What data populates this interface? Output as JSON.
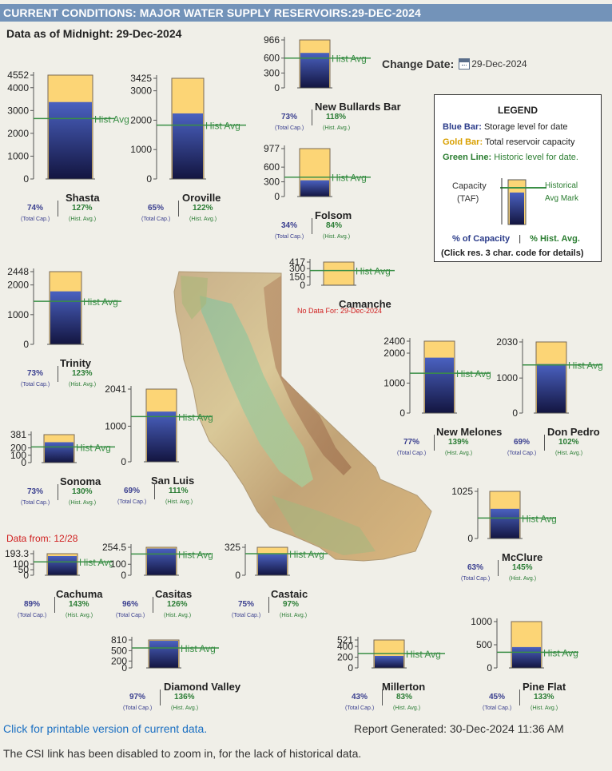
{
  "header": {
    "title": "CURRENT CONDITIONS: MAJOR WATER SUPPLY RESERVOIRS:29-DEC-2024",
    "data_as_of": "Data as of Midnight: 29-Dec-2024",
    "change_date_label": "Change Date:",
    "change_date_value": "29-Dec-2024",
    "calendar_icon": "calendar-icon"
  },
  "legend": {
    "title": "LEGEND",
    "blue_label": "Blue Bar:",
    "blue_text": "Storage level for date",
    "gold_label": "Gold Bar:",
    "gold_text": "Total reservoir capacity",
    "green_label": "Green Line:",
    "green_text": "Historic level for date.",
    "capacity_label": "Capacity",
    "taf_label": "(TAF)",
    "historical_label": "Historical",
    "avg_mark_label": "Avg Mark",
    "pct_capacity": "% of Capacity",
    "pct_hist": "% Hist. Avg.",
    "sep": "|",
    "click_note": "(Click res. 3 char. code for details)"
  },
  "colors": {
    "title_bar": "#7393b9",
    "gold": "#fcd576",
    "blue_top": "#4a61c0",
    "blue_bottom": "#131540",
    "green": "#3a8f46"
  },
  "chart_data": [
    {
      "type": "bar",
      "name": "Shasta",
      "capacity": 4552,
      "storage": 3370,
      "hist_avg": 2650,
      "ticks": [
        "4552",
        "4000",
        "3000",
        "2000",
        "1000",
        "0"
      ],
      "tick_values": [
        4552,
        4000,
        3000,
        2000,
        1000,
        0
      ],
      "pct_capacity": "74%",
      "pct_hist": "127%"
    },
    {
      "type": "bar",
      "name": "Oroville",
      "capacity": 3425,
      "storage": 2230,
      "hist_avg": 1830,
      "ticks": [
        "3425",
        "3000",
        "2000",
        "1000",
        "0"
      ],
      "tick_values": [
        3425,
        3000,
        2000,
        1000,
        0
      ],
      "pct_capacity": "65%",
      "pct_hist": "122%"
    },
    {
      "type": "bar",
      "name": "New Bullards Bar",
      "capacity": 966,
      "storage": 705,
      "hist_avg": 600,
      "ticks": [
        "966",
        "600",
        "300",
        "0"
      ],
      "tick_values": [
        966,
        600,
        300,
        0
      ],
      "pct_capacity": "73%",
      "pct_hist": "118%"
    },
    {
      "type": "bar",
      "name": "Folsom",
      "capacity": 977,
      "storage": 332,
      "hist_avg": 395,
      "ticks": [
        "977",
        "600",
        "300",
        "0"
      ],
      "tick_values": [
        977,
        600,
        300,
        0
      ],
      "pct_capacity": "34%",
      "pct_hist": "84%"
    },
    {
      "type": "bar",
      "name": "Camanche",
      "capacity": 417,
      "storage": null,
      "hist_avg": 265,
      "ticks": [
        "417",
        "300",
        "150",
        "0"
      ],
      "tick_values": [
        417,
        300,
        150,
        0
      ],
      "nodata": "No Data For: 29-Dec-2024"
    },
    {
      "type": "bar",
      "name": "Trinity",
      "capacity": 2448,
      "storage": 1785,
      "hist_avg": 1450,
      "ticks": [
        "2448",
        "2000",
        "1000",
        "0"
      ],
      "tick_values": [
        2448,
        2000,
        1000,
        0
      ],
      "pct_capacity": "73%",
      "pct_hist": "123%"
    },
    {
      "type": "bar",
      "name": "Sonoma",
      "capacity": 381,
      "storage": 278,
      "hist_avg": 214,
      "ticks": [
        "381",
        "200",
        "100",
        "0"
      ],
      "tick_values": [
        381,
        200,
        100,
        0
      ],
      "pct_capacity": "73%",
      "pct_hist": "130%"
    },
    {
      "type": "bar",
      "name": "San Luis",
      "capacity": 2041,
      "storage": 1410,
      "hist_avg": 1270,
      "ticks": [
        "2041",
        "1000",
        "0"
      ],
      "tick_values": [
        2041,
        1000,
        0
      ],
      "pct_capacity": "69%",
      "pct_hist": "111%"
    },
    {
      "type": "bar",
      "name": "New Melones",
      "capacity": 2400,
      "storage": 1850,
      "hist_avg": 1330,
      "ticks": [
        "2400",
        "2000",
        "1000",
        "0"
      ],
      "tick_values": [
        2400,
        2000,
        1000,
        0
      ],
      "pct_capacity": "77%",
      "pct_hist": "139%"
    },
    {
      "type": "bar",
      "name": "Don Pedro",
      "capacity": 2030,
      "storage": 1400,
      "hist_avg": 1375,
      "ticks": [
        "2030",
        "1000",
        "0"
      ],
      "tick_values": [
        2030,
        1000,
        0
      ],
      "pct_capacity": "69%",
      "pct_hist": "102%"
    },
    {
      "type": "bar",
      "name": "Cachuma",
      "capacity": 193.3,
      "storage": 172,
      "hist_avg": 120,
      "ticks": [
        "193.3",
        "100",
        "50",
        "0"
      ],
      "tick_values": [
        193.3,
        100,
        50,
        0
      ],
      "pct_capacity": "89%",
      "pct_hist": "143%",
      "data_from": "Data from:  12/28"
    },
    {
      "type": "bar",
      "name": "Casitas",
      "capacity": 254.5,
      "storage": 244,
      "hist_avg": 194,
      "ticks": [
        "254.5",
        "100",
        "0"
      ],
      "tick_values": [
        254.5,
        100,
        0
      ],
      "pct_capacity": "96%",
      "pct_hist": "126%"
    },
    {
      "type": "bar",
      "name": "Castaic",
      "capacity": 325,
      "storage": 244,
      "hist_avg": 251,
      "ticks": [
        "325",
        "0"
      ],
      "tick_values": [
        325,
        0
      ],
      "pct_capacity": "75%",
      "pct_hist": "97%"
    },
    {
      "type": "bar",
      "name": "McClure",
      "capacity": 1025,
      "storage": 646,
      "hist_avg": 446,
      "ticks": [
        "1025",
        "0"
      ],
      "tick_values": [
        1025,
        0
      ],
      "pct_capacity": "63%",
      "pct_hist": "145%"
    },
    {
      "type": "bar",
      "name": "Diamond Valley",
      "capacity": 810,
      "storage": 786,
      "hist_avg": 578,
      "ticks": [
        "810",
        "500",
        "200",
        "0"
      ],
      "tick_values": [
        810,
        500,
        200,
        0
      ],
      "pct_capacity": "97%",
      "pct_hist": "136%"
    },
    {
      "type": "bar",
      "name": "Millerton",
      "capacity": 521,
      "storage": 224,
      "hist_avg": 270,
      "ticks": [
        "521",
        "400",
        "200",
        "0"
      ],
      "tick_values": [
        521,
        400,
        200,
        0
      ],
      "pct_capacity": "43%",
      "pct_hist": "83%"
    },
    {
      "type": "bar",
      "name": "Pine Flat",
      "capacity": 1000,
      "storage": 450,
      "hist_avg": 338,
      "ticks": [
        "1000",
        "500",
        "0"
      ],
      "tick_values": [
        1000,
        500,
        0
      ],
      "pct_capacity": "45%",
      "pct_hist": "133%"
    }
  ],
  "labels": {
    "hist_avg": "Hist Avg",
    "total_cap": "(Total Cap.)",
    "hist_avg_small": "(Hist. Avg.)"
  },
  "footer": {
    "printable_link": "Click for printable version of current data.",
    "report_generated": "Report Generated: 30-Dec-2024 11:36 AM",
    "note": "The CSI link has been disabled to zoom in, for the lack of historical data."
  }
}
